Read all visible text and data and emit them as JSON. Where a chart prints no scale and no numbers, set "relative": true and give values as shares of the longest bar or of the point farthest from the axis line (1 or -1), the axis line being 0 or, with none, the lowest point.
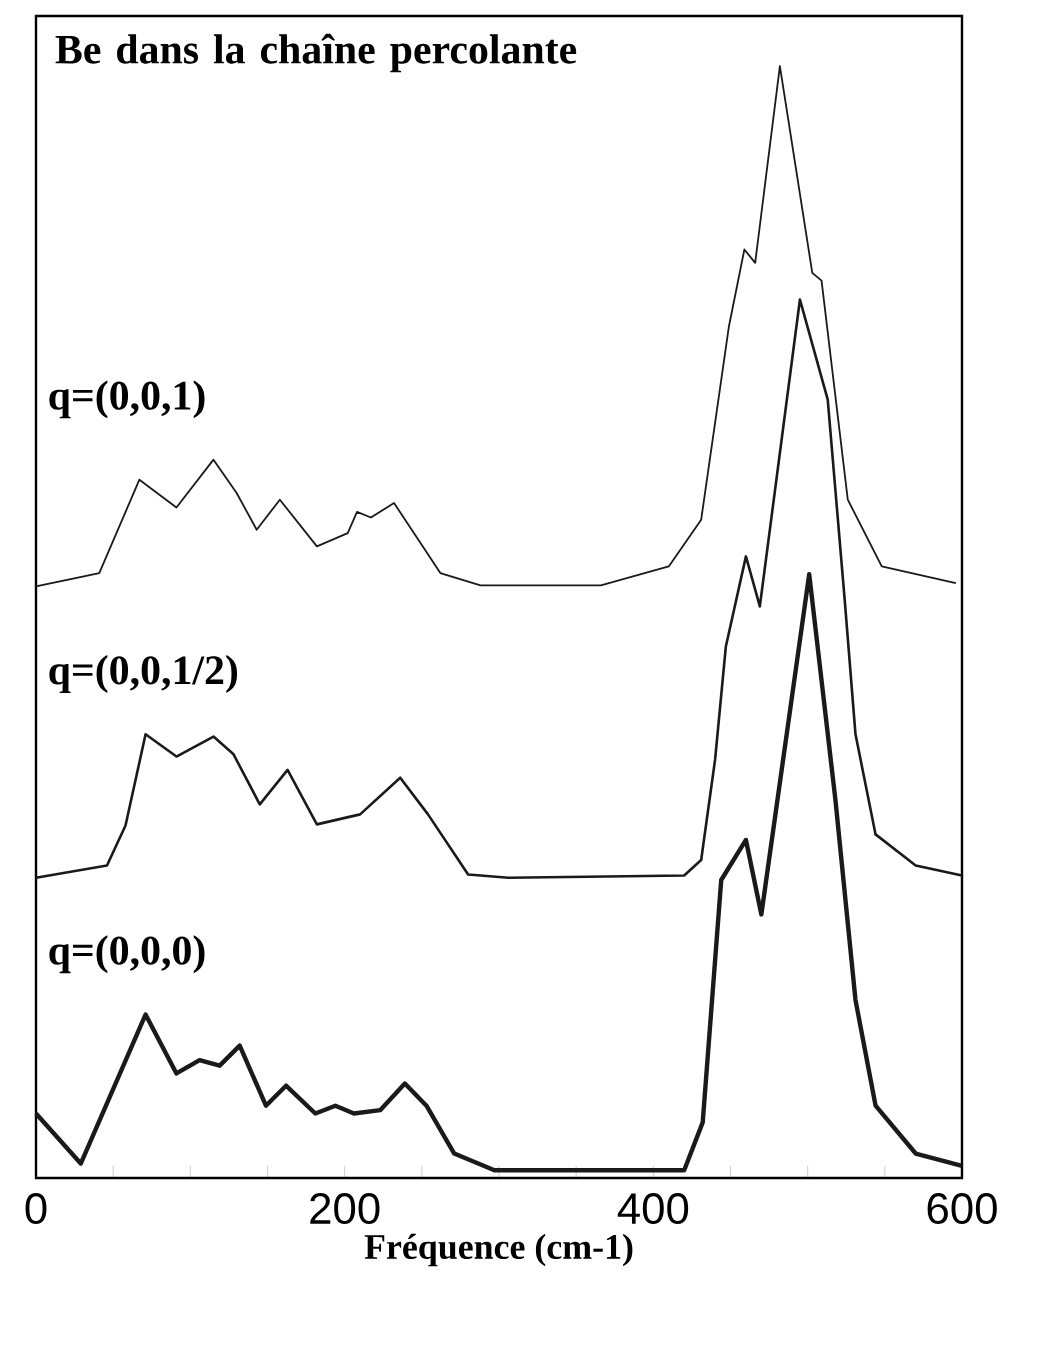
{
  "chart_data": {
    "type": "line",
    "title": "Be dans la chaîne percolante",
    "xlabel": "Fréquence (cm-1)",
    "relative": true,
    "xlim": [
      0,
      600
    ],
    "xticks": [
      0,
      {
        "value": 50,
        "label": null
      },
      {
        "value": 100,
        "label": null
      },
      {
        "value": 150,
        "label": null
      },
      200,
      {
        "value": 250,
        "label": null
      },
      {
        "value": 300,
        "label": null
      },
      {
        "value": 350,
        "label": null
      },
      400,
      {
        "value": 450,
        "label": null
      },
      {
        "value": 500,
        "label": null
      },
      {
        "value": 550,
        "label": null
      },
      600
    ],
    "grid": false,
    "legend": false,
    "marker": "none",
    "line_style": "solid",
    "series": [
      {
        "name": "q=(0,0,1)",
        "color": "#1a1a1a",
        "x": [
          0,
          41,
          67,
          91,
          115,
          130,
          143,
          158,
          182,
          202,
          208,
          217,
          232,
          262,
          288,
          366,
          410,
          431,
          449,
          459,
          466,
          482,
          503,
          509,
          526,
          548,
          596
        ],
        "values": [
          0.532,
          0.544,
          0.628,
          0.603,
          0.646,
          0.616,
          0.583,
          0.61,
          0.568,
          0.58,
          0.599,
          0.594,
          0.607,
          0.544,
          0.533,
          0.533,
          0.55,
          0.592,
          0.766,
          0.835,
          0.823,
          1.0,
          0.814,
          0.807,
          0.61,
          0.55,
          0.535
        ]
      },
      {
        "name": "q=(0,0,1/2)",
        "color": "#1a1a1a",
        "x": [
          0,
          46,
          58,
          71,
          91,
          115,
          128,
          145,
          163,
          182,
          210,
          236,
          254,
          280,
          306,
          420,
          431,
          440,
          447,
          460,
          469,
          495,
          513,
          524,
          531,
          544,
          570,
          600
        ],
        "values": [
          0.27,
          0.281,
          0.317,
          0.399,
          0.379,
          0.397,
          0.381,
          0.336,
          0.367,
          0.318,
          0.327,
          0.36,
          0.327,
          0.273,
          0.27,
          0.272,
          0.286,
          0.376,
          0.478,
          0.559,
          0.514,
          0.79,
          0.7,
          0.52,
          0.399,
          0.309,
          0.281,
          0.272
        ]
      },
      {
        "name": "q=(0,0,0)",
        "color": "#1a1a1a",
        "x": [
          0,
          29,
          71,
          91,
          106,
          119,
          132,
          149,
          162,
          181,
          194,
          206,
          223,
          239,
          253,
          271,
          297,
          420,
          432,
          444,
          460,
          470,
          501,
          518,
          531,
          544,
          570,
          600
        ],
        "values": [
          0.058,
          0.013,
          0.147,
          0.094,
          0.106,
          0.101,
          0.119,
          0.065,
          0.083,
          0.058,
          0.065,
          0.058,
          0.061,
          0.085,
          0.065,
          0.022,
          0.007,
          0.007,
          0.05,
          0.268,
          0.304,
          0.237,
          0.543,
          0.34,
          0.16,
          0.065,
          0.022,
          0.011
        ]
      }
    ]
  }
}
